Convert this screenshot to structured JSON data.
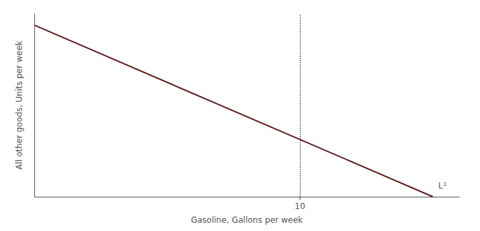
{
  "chart_data": {
    "type": "line",
    "xlabel": "Gasoline, Gallons per week",
    "ylabel": "All other goods, Units per week",
    "x": [
      0,
      15
    ],
    "values": [
      15,
      0
    ],
    "color": "#5c1a1a",
    "xlim": [
      0,
      16
    ],
    "ylim": [
      0,
      16
    ],
    "xticks": [
      10
    ],
    "yticks": [],
    "tick_labels": "x",
    "grid": false,
    "vline": {
      "x": 10,
      "color": "#555555",
      "line_style": "dotted"
    },
    "annotations": [
      {
        "text": "L¹",
        "x": 15.2,
        "y": 0.3
      }
    ]
  }
}
